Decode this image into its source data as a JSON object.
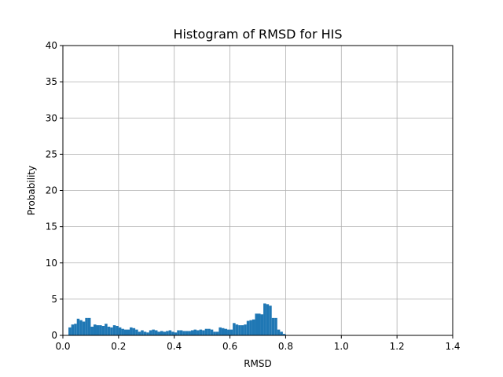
{
  "chart_data": {
    "type": "bar",
    "title": "Histogram of RMSD for HIS",
    "xlabel": "RMSD",
    "ylabel": "Probability",
    "xlim": [
      0,
      1.4
    ],
    "ylim": [
      0,
      40
    ],
    "xticks": [
      "0.0",
      "0.2",
      "0.4",
      "0.6",
      "0.8",
      "1.0",
      "1.2",
      "1.4"
    ],
    "yticks": [
      "0",
      "5",
      "10",
      "15",
      "20",
      "25",
      "30",
      "35",
      "40"
    ],
    "grid": true,
    "bar_color": "#1f77b4",
    "bin_width": 0.01,
    "bins_start": [
      0.02,
      0.03,
      0.04,
      0.05,
      0.06,
      0.07,
      0.08,
      0.09,
      0.1,
      0.11,
      0.12,
      0.13,
      0.14,
      0.15,
      0.16,
      0.17,
      0.18,
      0.19,
      0.2,
      0.21,
      0.22,
      0.23,
      0.24,
      0.25,
      0.26,
      0.27,
      0.28,
      0.29,
      0.3,
      0.31,
      0.32,
      0.33,
      0.34,
      0.35,
      0.36,
      0.37,
      0.38,
      0.39,
      0.4,
      0.41,
      0.42,
      0.43,
      0.44,
      0.45,
      0.46,
      0.47,
      0.48,
      0.49,
      0.5,
      0.51,
      0.52,
      0.53,
      0.54,
      0.55,
      0.56,
      0.57,
      0.58,
      0.59,
      0.6,
      0.61,
      0.62,
      0.63,
      0.64,
      0.65,
      0.66,
      0.67,
      0.68,
      0.69,
      0.7,
      0.71,
      0.72,
      0.73,
      0.74,
      0.75,
      0.76,
      0.77,
      0.78,
      0.79
    ],
    "values": [
      1.1,
      1.5,
      1.6,
      2.3,
      2.1,
      1.9,
      2.4,
      2.4,
      1.2,
      1.5,
      1.4,
      1.4,
      1.3,
      1.6,
      1.2,
      1.1,
      1.4,
      1.3,
      1.1,
      0.9,
      0.8,
      0.8,
      1.1,
      1.0,
      0.8,
      0.5,
      0.7,
      0.5,
      0.4,
      0.7,
      0.8,
      0.7,
      0.5,
      0.6,
      0.5,
      0.6,
      0.7,
      0.5,
      0.4,
      0.7,
      0.7,
      0.6,
      0.6,
      0.6,
      0.7,
      0.8,
      0.7,
      0.8,
      0.7,
      0.9,
      0.9,
      0.8,
      0.5,
      0.5,
      1.1,
      1.0,
      0.9,
      0.8,
      0.8,
      1.7,
      1.5,
      1.4,
      1.4,
      1.5,
      2.0,
      2.1,
      2.2,
      3.0,
      3.0,
      2.9,
      4.4,
      4.3,
      4.1,
      2.4,
      2.4,
      0.8,
      0.5,
      0.2
    ]
  }
}
